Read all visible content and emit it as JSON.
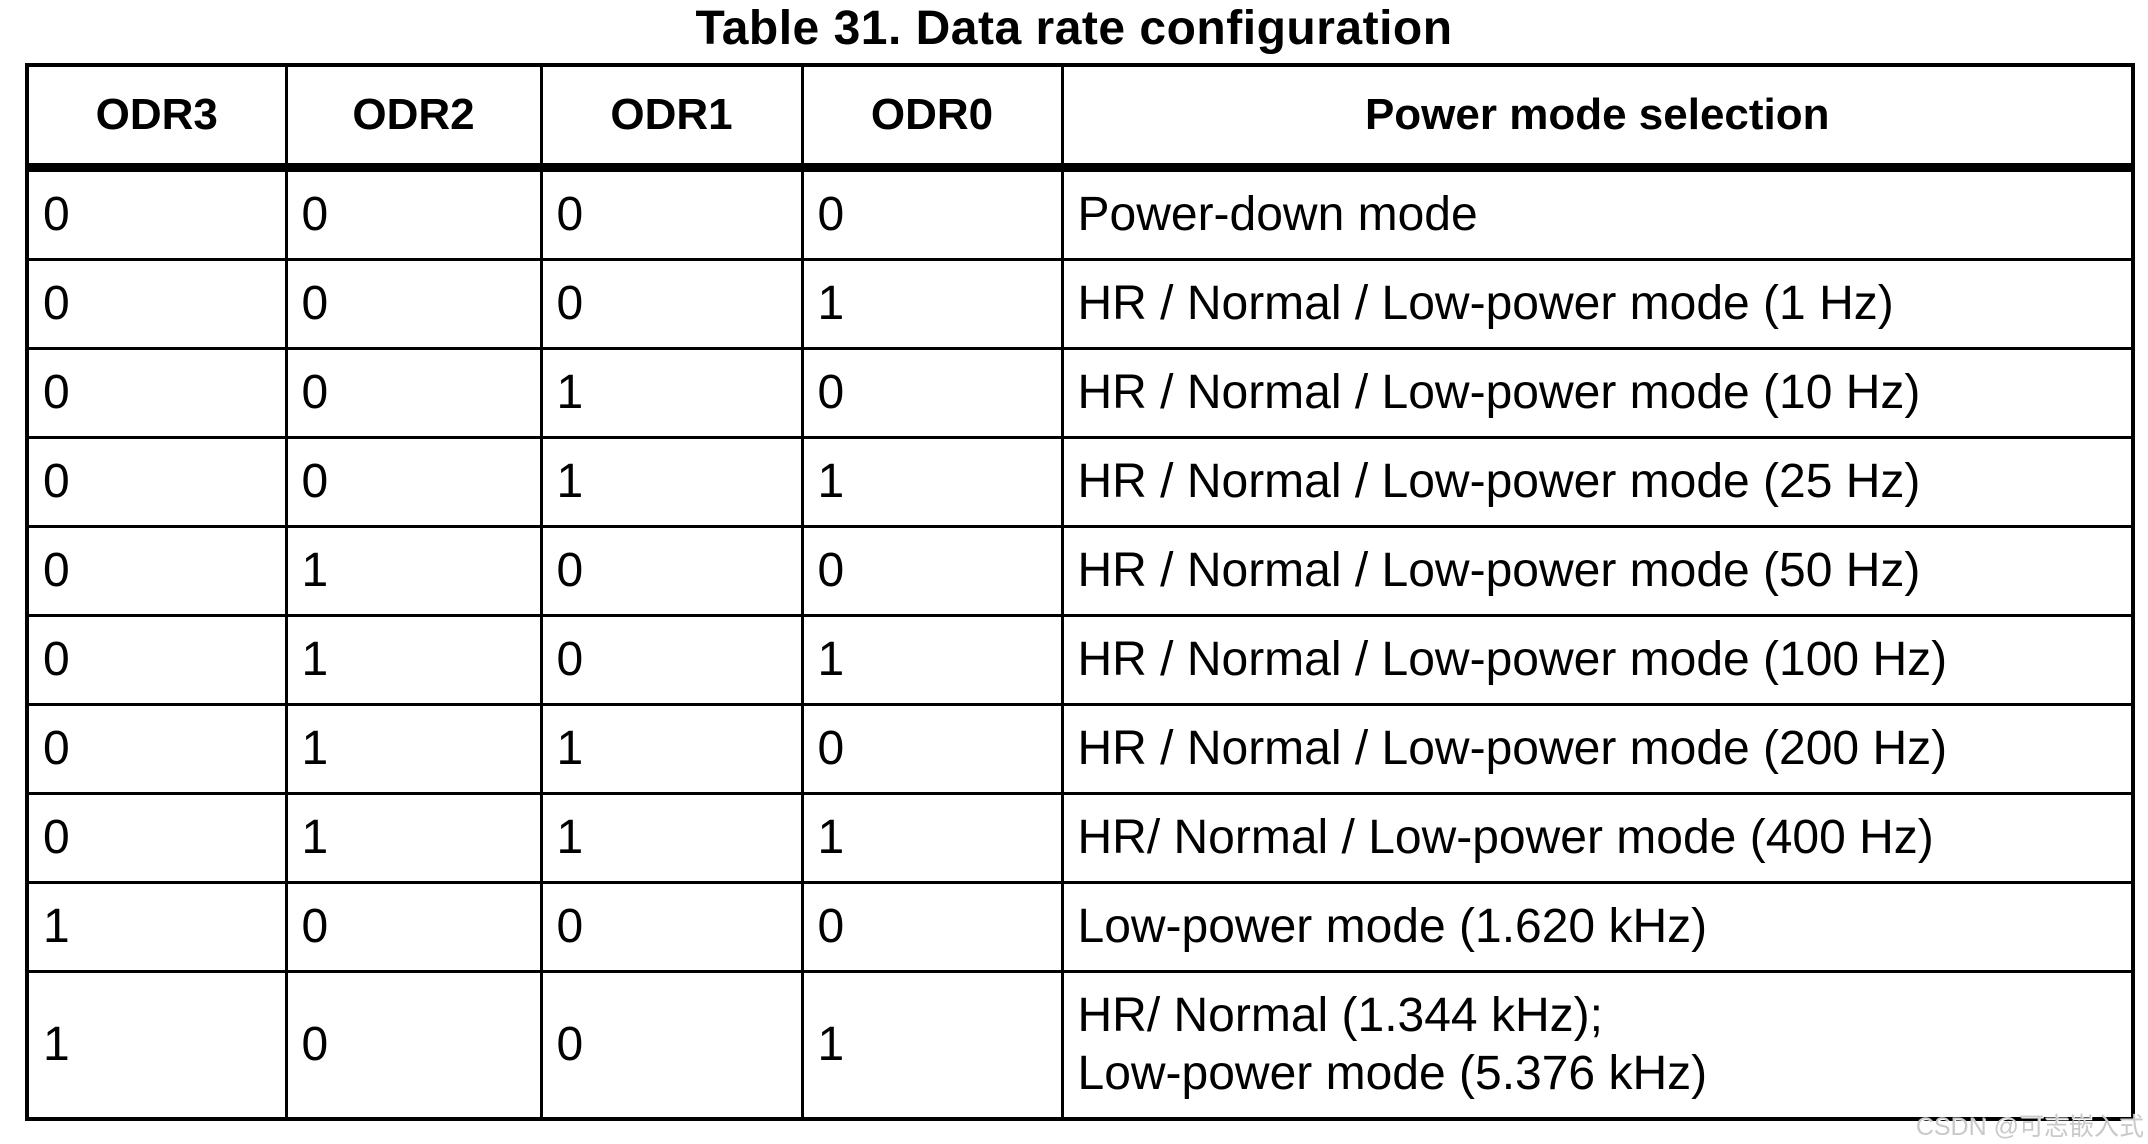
{
  "page": {
    "title": "Table 31. Data rate configuration",
    "watermark": "CSDN @可志嵌入式"
  },
  "table": {
    "columns": [
      "ODR3",
      "ODR2",
      "ODR1",
      "ODR0",
      "Power mode selection"
    ],
    "rows": [
      {
        "odr3": "0",
        "odr2": "0",
        "odr1": "0",
        "odr0": "0",
        "mode": "Power-down mode"
      },
      {
        "odr3": "0",
        "odr2": "0",
        "odr1": "0",
        "odr0": "1",
        "mode": "HR / Normal / Low-power mode (1 Hz)"
      },
      {
        "odr3": "0",
        "odr2": "0",
        "odr1": "1",
        "odr0": "0",
        "mode": "HR / Normal / Low-power mode (10 Hz)"
      },
      {
        "odr3": "0",
        "odr2": "0",
        "odr1": "1",
        "odr0": "1",
        "mode": "HR / Normal / Low-power mode (25 Hz)"
      },
      {
        "odr3": "0",
        "odr2": "1",
        "odr1": "0",
        "odr0": "0",
        "mode": "HR / Normal / Low-power mode (50 Hz)"
      },
      {
        "odr3": "0",
        "odr2": "1",
        "odr1": "0",
        "odr0": "1",
        "mode": "HR / Normal / Low-power mode (100 Hz)"
      },
      {
        "odr3": "0",
        "odr2": "1",
        "odr1": "1",
        "odr0": "0",
        "mode": "HR / Normal / Low-power mode (200 Hz)"
      },
      {
        "odr3": "0",
        "odr2": "1",
        "odr1": "1",
        "odr0": "1",
        "mode": "HR/ Normal / Low-power mode (400 Hz)"
      },
      {
        "odr3": "1",
        "odr2": "0",
        "odr1": "0",
        "odr0": "0",
        "mode": "Low-power mode (1.620 kHz)"
      },
      {
        "odr3": "1",
        "odr2": "0",
        "odr1": "0",
        "odr0": "1",
        "mode": [
          "HR/ Normal (1.344 kHz);",
          "Low-power mode (5.376 kHz)"
        ]
      }
    ]
  },
  "colors": {
    "background": "#ffffff",
    "text": "#000000",
    "border": "#000000",
    "watermark": "#c9c9c9"
  }
}
